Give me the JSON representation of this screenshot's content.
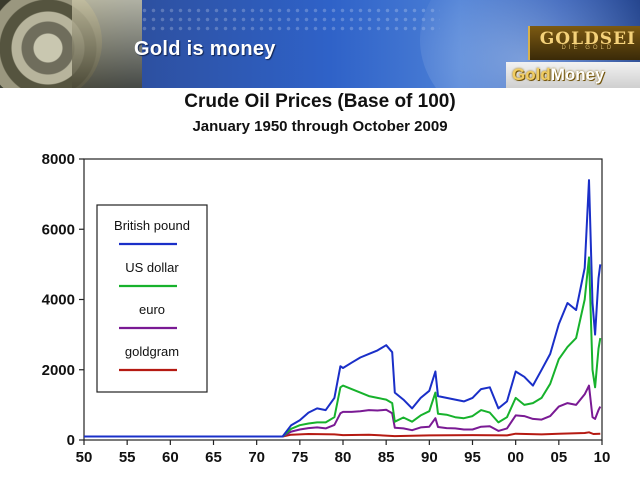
{
  "slide": {
    "banner_title": "Gold is money",
    "logo_goldseiten": "GOLDSEI",
    "logo_goldseiten_sub": "DIE GOLD",
    "logo_goldmoney_gold": "Gold",
    "logo_goldmoney_money": "Money"
  },
  "colors": {
    "banner": "#2f62c8",
    "british_pound": "#1a2fc8",
    "us_dollar": "#17b22c",
    "euro": "#7a1a94",
    "goldgram": "#b51a12"
  },
  "chart_data": {
    "type": "line",
    "title": "Crude Oil Prices (Base of 100)",
    "subtitle": "January 1950 through October 2009",
    "x_ticks": [
      "50",
      "55",
      "60",
      "65",
      "70",
      "75",
      "80",
      "85",
      "90",
      "95",
      "00",
      "05",
      "10"
    ],
    "y_ticks": [
      "0",
      "2000",
      "4000",
      "6000",
      "8000"
    ],
    "xlim": [
      1950,
      2010
    ],
    "ylim": [
      0,
      8000
    ],
    "grid": false,
    "legend_placement": "upper-left",
    "series": [
      {
        "name": "British pound",
        "color": "#1a2fc8",
        "points": [
          [
            1950,
            100
          ],
          [
            1973,
            100
          ],
          [
            1974,
            420
          ],
          [
            1975,
            560
          ],
          [
            1976,
            780
          ],
          [
            1977,
            900
          ],
          [
            1978,
            850
          ],
          [
            1979,
            1200
          ],
          [
            1979.7,
            2100
          ],
          [
            1980,
            2050
          ],
          [
            1981,
            2200
          ],
          [
            1982,
            2350
          ],
          [
            1983,
            2450
          ],
          [
            1984,
            2550
          ],
          [
            1985,
            2700
          ],
          [
            1985.7,
            2500
          ],
          [
            1986,
            1350
          ],
          [
            1987,
            1150
          ],
          [
            1988,
            900
          ],
          [
            1989,
            1200
          ],
          [
            1990,
            1400
          ],
          [
            1990.7,
            1950
          ],
          [
            1991,
            1250
          ],
          [
            1992,
            1200
          ],
          [
            1993,
            1150
          ],
          [
            1994,
            1100
          ],
          [
            1995,
            1200
          ],
          [
            1996,
            1450
          ],
          [
            1997,
            1500
          ],
          [
            1998,
            900
          ],
          [
            1999,
            1100
          ],
          [
            2000,
            1950
          ],
          [
            2001,
            1800
          ],
          [
            2002,
            1550
          ],
          [
            2003,
            2000
          ],
          [
            2004,
            2450
          ],
          [
            2005,
            3300
          ],
          [
            2006,
            3900
          ],
          [
            2007,
            3700
          ],
          [
            2008,
            4900
          ],
          [
            2008.5,
            7400
          ],
          [
            2008.9,
            3900
          ],
          [
            2009.2,
            3000
          ],
          [
            2009.6,
            4600
          ],
          [
            2009.8,
            5000
          ]
        ]
      },
      {
        "name": "US dollar",
        "color": "#17b22c",
        "points": [
          [
            1950,
            100
          ],
          [
            1973,
            100
          ],
          [
            1974,
            320
          ],
          [
            1975,
            420
          ],
          [
            1976,
            470
          ],
          [
            1977,
            500
          ],
          [
            1978,
            500
          ],
          [
            1979,
            650
          ],
          [
            1979.7,
            1500
          ],
          [
            1980,
            1550
          ],
          [
            1981,
            1450
          ],
          [
            1982,
            1350
          ],
          [
            1983,
            1250
          ],
          [
            1984,
            1200
          ],
          [
            1985,
            1150
          ],
          [
            1985.7,
            1050
          ],
          [
            1986,
            520
          ],
          [
            1987,
            640
          ],
          [
            1988,
            520
          ],
          [
            1989,
            700
          ],
          [
            1990,
            820
          ],
          [
            1990.7,
            1350
          ],
          [
            1991,
            750
          ],
          [
            1992,
            720
          ],
          [
            1993,
            650
          ],
          [
            1994,
            620
          ],
          [
            1995,
            680
          ],
          [
            1996,
            850
          ],
          [
            1997,
            780
          ],
          [
            1998,
            500
          ],
          [
            1999,
            650
          ],
          [
            2000,
            1200
          ],
          [
            2001,
            1000
          ],
          [
            2002,
            1050
          ],
          [
            2003,
            1200
          ],
          [
            2004,
            1600
          ],
          [
            2005,
            2300
          ],
          [
            2006,
            2650
          ],
          [
            2007,
            2900
          ],
          [
            2008,
            4000
          ],
          [
            2008.5,
            5200
          ],
          [
            2008.9,
            2000
          ],
          [
            2009.2,
            1500
          ],
          [
            2009.6,
            2600
          ],
          [
            2009.8,
            2900
          ]
        ]
      },
      {
        "name": "euro",
        "color": "#7a1a94",
        "points": [
          [
            1950,
            100
          ],
          [
            1973,
            100
          ],
          [
            1974,
            240
          ],
          [
            1975,
            300
          ],
          [
            1976,
            340
          ],
          [
            1977,
            360
          ],
          [
            1978,
            330
          ],
          [
            1979,
            430
          ],
          [
            1979.7,
            760
          ],
          [
            1980,
            800
          ],
          [
            1981,
            800
          ],
          [
            1982,
            820
          ],
          [
            1983,
            850
          ],
          [
            1984,
            840
          ],
          [
            1985,
            860
          ],
          [
            1985.7,
            760
          ],
          [
            1986,
            350
          ],
          [
            1987,
            330
          ],
          [
            1988,
            280
          ],
          [
            1989,
            360
          ],
          [
            1990,
            380
          ],
          [
            1990.7,
            620
          ],
          [
            1991,
            370
          ],
          [
            1992,
            340
          ],
          [
            1993,
            330
          ],
          [
            1994,
            300
          ],
          [
            1995,
            300
          ],
          [
            1996,
            380
          ],
          [
            1997,
            390
          ],
          [
            1998,
            260
          ],
          [
            1999,
            330
          ],
          [
            2000,
            700
          ],
          [
            2001,
            680
          ],
          [
            2002,
            600
          ],
          [
            2003,
            580
          ],
          [
            2004,
            680
          ],
          [
            2005,
            950
          ],
          [
            2006,
            1050
          ],
          [
            2007,
            1000
          ],
          [
            2008,
            1300
          ],
          [
            2008.5,
            1550
          ],
          [
            2008.9,
            650
          ],
          [
            2009.2,
            600
          ],
          [
            2009.6,
            850
          ],
          [
            2009.8,
            950
          ]
        ]
      },
      {
        "name": "goldgram",
        "color": "#b51a12",
        "points": [
          [
            1950,
            100
          ],
          [
            1973,
            100
          ],
          [
            1974,
            150
          ],
          [
            1976,
            170
          ],
          [
            1979,
            160
          ],
          [
            1980,
            140
          ],
          [
            1983,
            150
          ],
          [
            1986,
            110
          ],
          [
            1990,
            130
          ],
          [
            1995,
            140
          ],
          [
            1999,
            130
          ],
          [
            2000,
            180
          ],
          [
            2003,
            160
          ],
          [
            2005,
            180
          ],
          [
            2008,
            200
          ],
          [
            2008.5,
            220
          ],
          [
            2009,
            170
          ],
          [
            2009.8,
            180
          ]
        ]
      }
    ]
  }
}
